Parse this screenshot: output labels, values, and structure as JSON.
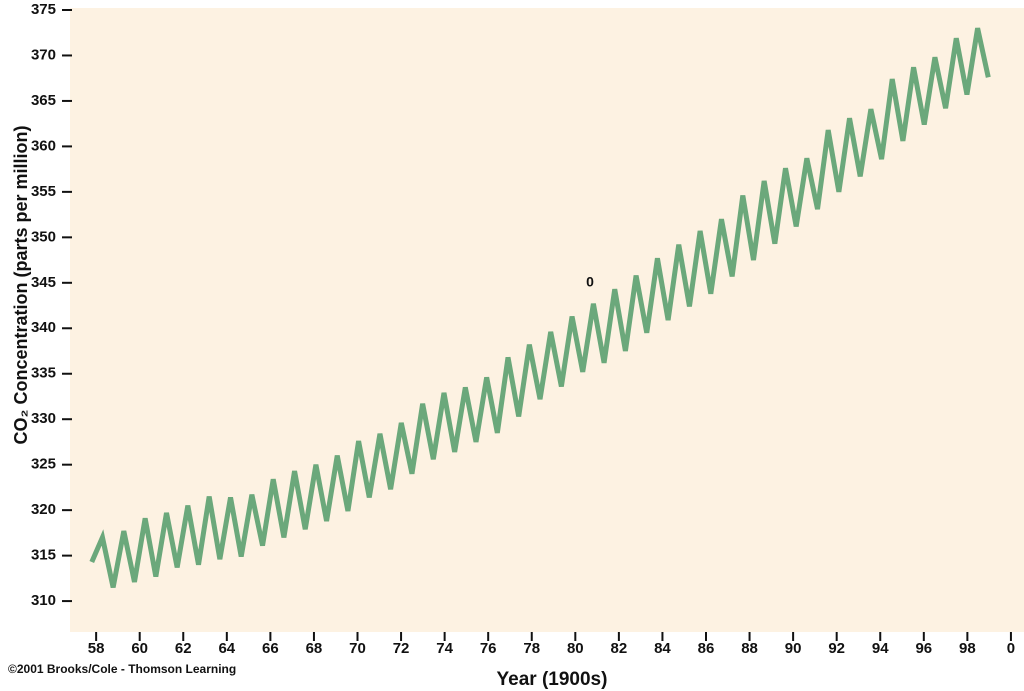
{
  "chart_data": {
    "type": "line",
    "y_label": "CO₂ Concentration (parts per million)",
    "x_label": "Year (1900s)",
    "annotation": "0",
    "credit": "©2001 Brooks/Cole - Thomson Learning",
    "background": "#fdf2e2",
    "x": [
      57.8,
      58.29,
      58.78,
      59.27,
      59.76,
      60.25,
      60.74,
      61.23,
      61.72,
      62.21,
      62.7,
      63.19,
      63.68,
      64.17,
      64.66,
      65.15,
      65.64,
      66.13,
      66.62,
      67.11,
      67.6,
      68.09,
      68.58,
      69.07,
      69.56,
      70.05,
      70.54,
      71.03,
      71.52,
      72.01,
      72.5,
      72.99,
      73.48,
      73.97,
      74.46,
      74.95,
      75.44,
      75.93,
      76.42,
      76.91,
      77.4,
      77.89,
      78.38,
      78.87,
      79.36,
      79.85,
      80.34,
      80.83,
      81.32,
      81.81,
      82.3,
      82.79,
      83.28,
      83.77,
      84.26,
      84.75,
      85.24,
      85.73,
      86.22,
      86.71,
      87.2,
      87.69,
      88.18,
      88.67,
      89.16,
      89.65,
      90.14,
      90.63,
      91.12,
      91.61,
      92.1,
      92.59,
      93.08,
      93.57,
      94.06,
      94.55,
      95.04,
      95.53,
      96.02,
      96.51,
      97.0,
      97.49,
      97.98,
      98.47,
      98.96
    ],
    "series": [
      {
        "color": "#6ba87b",
        "values": [
          314.3,
          317.0,
          311.5,
          317.7,
          312.1,
          319.1,
          312.7,
          319.7,
          313.7,
          320.5,
          314.0,
          321.5,
          314.6,
          321.4,
          314.9,
          321.7,
          316.1,
          323.4,
          317.0,
          324.3,
          317.9,
          325.0,
          318.8,
          326.0,
          319.9,
          327.6,
          321.4,
          328.4,
          322.3,
          329.6,
          324.0,
          331.7,
          325.6,
          332.9,
          326.4,
          333.5,
          327.5,
          334.6,
          328.5,
          336.8,
          330.3,
          338.2,
          332.2,
          339.6,
          333.6,
          341.3,
          335.2,
          342.7,
          336.2,
          344.3,
          337.5,
          345.8,
          339.5,
          347.7,
          340.9,
          349.2,
          342.4,
          350.7,
          343.8,
          352.0,
          345.7,
          354.6,
          347.5,
          356.2,
          349.3,
          357.6,
          351.2,
          358.7,
          353.1,
          361.8,
          355.0,
          363.1,
          356.7,
          364.1,
          358.6,
          367.4,
          360.6,
          368.7,
          362.4,
          369.8,
          364.2,
          371.9,
          365.7,
          373.0,
          367.6
        ]
      }
    ],
    "xlim": [
      56.8,
      100.6
    ],
    "ylim": [
      306.6,
      375
    ],
    "xticks": [
      58,
      60,
      62,
      64,
      66,
      68,
      70,
      72,
      74,
      76,
      78,
      80,
      82,
      84,
      86,
      88,
      90,
      92,
      94,
      96,
      98,
      {
        "value": 100,
        "label": "0"
      }
    ],
    "yticks": [
      310,
      315,
      320,
      325,
      330,
      335,
      340,
      345,
      350,
      355,
      360,
      365,
      370,
      375
    ]
  }
}
